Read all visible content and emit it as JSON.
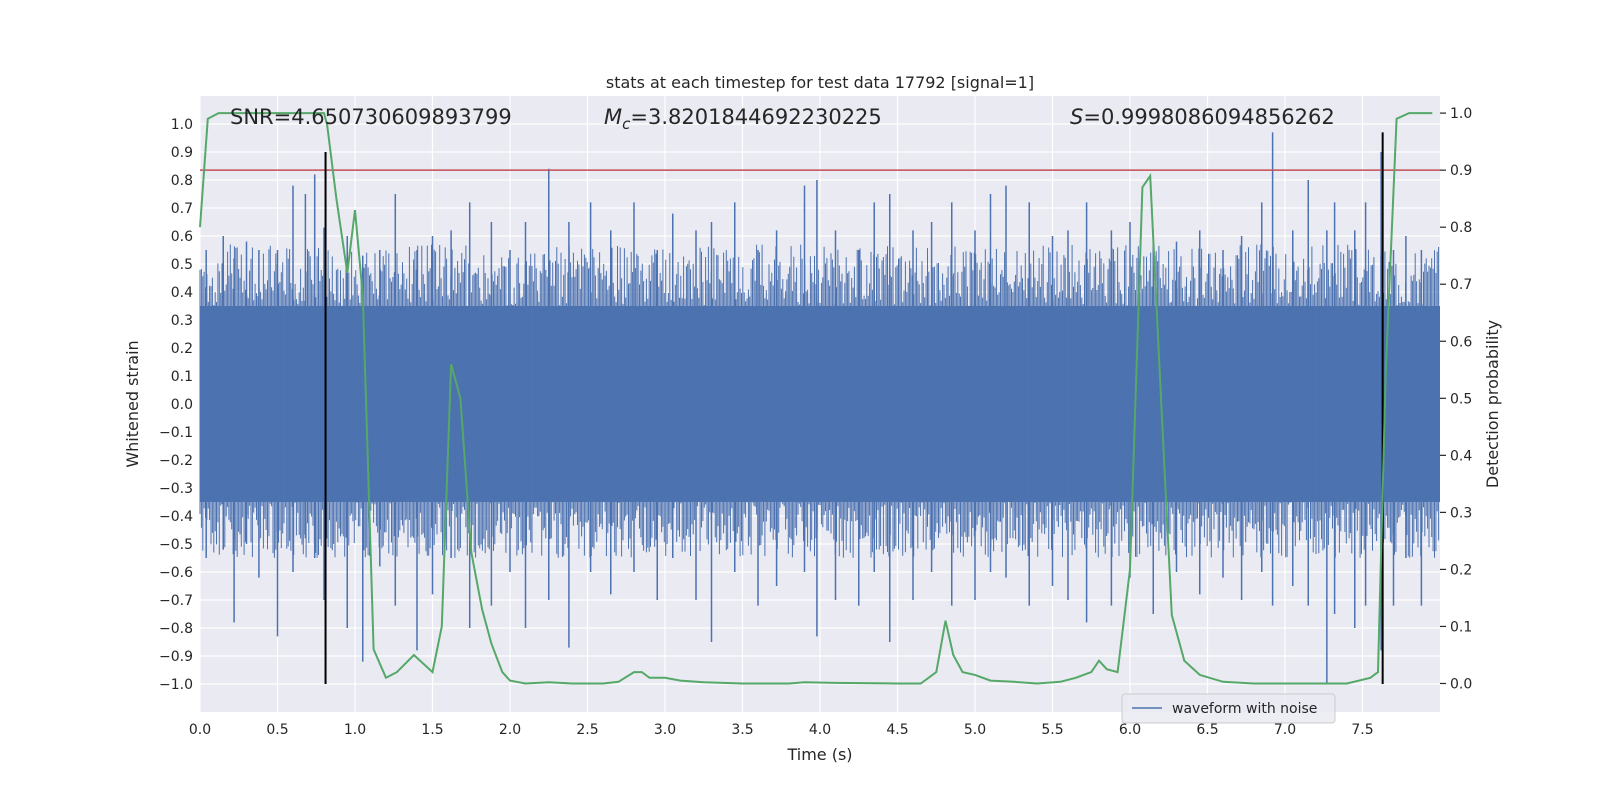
{
  "chart_data": {
    "type": "line",
    "title": "stats at each timestep for test data 17792 [signal=1]",
    "xlabel": "Time (s)",
    "ylabel_left": "Whitened strain",
    "ylabel_right": "Detection probability",
    "xlim": [
      0.0,
      8.0
    ],
    "ylim_left": [
      -1.1,
      1.1
    ],
    "ylim_right": [
      -0.05,
      1.03
    ],
    "x_ticks": [
      0.0,
      0.5,
      1.0,
      1.5,
      2.0,
      2.5,
      3.0,
      3.5,
      4.0,
      4.5,
      5.0,
      5.5,
      6.0,
      6.5,
      7.0,
      7.5
    ],
    "x_tick_labels": [
      "0.0",
      "0.5",
      "1.0",
      "1.5",
      "2.0",
      "2.5",
      "3.0",
      "3.5",
      "4.0",
      "4.5",
      "5.0",
      "5.5",
      "6.0",
      "6.5",
      "7.0",
      "7.5"
    ],
    "y_left_ticks": [
      1.0,
      0.9,
      0.8,
      0.7,
      0.6,
      0.5,
      0.4,
      0.3,
      0.2,
      0.1,
      0.0,
      -0.1,
      -0.2,
      -0.3,
      -0.4,
      -0.5,
      -0.6,
      -0.7,
      -0.8,
      -0.9,
      -1.0
    ],
    "y_left_tick_labels": [
      "1.0",
      "0.9",
      "0.8",
      "0.7",
      "0.6",
      "0.5",
      "0.4",
      "0.3",
      "0.2",
      "0.1",
      "0.0",
      "−0.1",
      "−0.2",
      "−0.3",
      "−0.4",
      "−0.5",
      "−0.6",
      "−0.7",
      "−0.8",
      "−0.9",
      "−1.0"
    ],
    "y_right_ticks": [
      1.0,
      0.9,
      0.8,
      0.7,
      0.6,
      0.5,
      0.4,
      0.3,
      0.2,
      0.1,
      0.0
    ],
    "y_right_tick_labels": [
      "1.0",
      "0.9",
      "0.8",
      "0.7",
      "0.6",
      "0.5",
      "0.4",
      "0.3",
      "0.2",
      "0.1",
      "0.0"
    ],
    "annotations": {
      "snr": "SNR=4.650730609893799",
      "mc_prefix": "M",
      "mc_sub": "c",
      "mc_value": "=3.8201844692230225",
      "s_prefix": "S",
      "s_value": "=0.9998086094856262"
    },
    "threshold_line": {
      "axis": "right",
      "y": 0.9,
      "color": "#c44e52"
    },
    "vertical_lines": [
      {
        "x": 0.81,
        "y_range": [
          -1.0,
          0.9
        ]
      },
      {
        "x": 7.63,
        "y_range": [
          -1.0,
          0.97
        ]
      }
    ],
    "series": [
      {
        "name": "waveform with noise",
        "axis": "left",
        "color": "#4c72b0",
        "band_abs": 0.35,
        "spikes": [
          [
            0.04,
            0.55,
            -0.55
          ],
          [
            0.15,
            0.6,
            -0.52
          ],
          [
            0.22,
            0.52,
            -0.78
          ],
          [
            0.3,
            0.58,
            -0.5
          ],
          [
            0.38,
            0.55,
            -0.62
          ],
          [
            0.5,
            0.55,
            -0.83
          ],
          [
            0.6,
            0.78,
            -0.6
          ],
          [
            0.68,
            0.75,
            -0.48
          ],
          [
            0.74,
            0.82,
            -0.55
          ],
          [
            0.8,
            0.63,
            -0.7
          ],
          [
            0.95,
            0.6,
            -0.8
          ],
          [
            1.05,
            0.53,
            -0.92
          ],
          [
            1.16,
            0.55,
            -0.58
          ],
          [
            1.26,
            0.75,
            -0.72
          ],
          [
            1.4,
            0.55,
            -0.88
          ],
          [
            1.5,
            0.6,
            -0.68
          ],
          [
            1.62,
            0.62,
            -0.55
          ],
          [
            1.74,
            0.72,
            -0.8
          ],
          [
            1.88,
            0.65,
            -0.72
          ],
          [
            2.0,
            0.55,
            -0.6
          ],
          [
            2.1,
            0.65,
            -0.8
          ],
          [
            2.25,
            0.84,
            -0.7
          ],
          [
            2.38,
            0.65,
            -0.87
          ],
          [
            2.52,
            0.72,
            -0.6
          ],
          [
            2.65,
            0.62,
            -0.68
          ],
          [
            2.8,
            0.72,
            -0.6
          ],
          [
            2.95,
            0.55,
            -0.7
          ],
          [
            3.05,
            0.68,
            -0.55
          ],
          [
            3.2,
            0.62,
            -0.7
          ],
          [
            3.3,
            0.65,
            -0.85
          ],
          [
            3.45,
            0.72,
            -0.6
          ],
          [
            3.6,
            0.55,
            -0.72
          ],
          [
            3.72,
            0.62,
            -0.65
          ],
          [
            3.9,
            0.78,
            -0.6
          ],
          [
            3.98,
            0.8,
            -0.83
          ],
          [
            4.1,
            0.62,
            -0.7
          ],
          [
            4.25,
            0.55,
            -0.72
          ],
          [
            4.35,
            0.72,
            -0.6
          ],
          [
            4.45,
            0.75,
            -0.85
          ],
          [
            4.6,
            0.62,
            -0.7
          ],
          [
            4.72,
            0.65,
            -0.6
          ],
          [
            4.85,
            0.72,
            -0.72
          ],
          [
            5.0,
            0.62,
            -0.7
          ],
          [
            5.1,
            0.75,
            -0.6
          ],
          [
            5.2,
            0.78,
            -0.62
          ],
          [
            5.35,
            0.72,
            -0.72
          ],
          [
            5.5,
            0.6,
            -0.65
          ],
          [
            5.6,
            0.62,
            -0.7
          ],
          [
            5.72,
            0.72,
            -0.78
          ],
          [
            5.88,
            0.62,
            -0.72
          ],
          [
            6.0,
            0.65,
            -0.62
          ],
          [
            6.15,
            0.62,
            -0.75
          ],
          [
            6.3,
            0.58,
            -0.6
          ],
          [
            6.45,
            0.62,
            -0.68
          ],
          [
            6.6,
            0.55,
            -0.62
          ],
          [
            6.72,
            0.6,
            -0.7
          ],
          [
            6.85,
            0.72,
            -0.6
          ],
          [
            6.92,
            0.97,
            -0.72
          ],
          [
            7.05,
            0.62,
            -0.65
          ],
          [
            7.15,
            0.8,
            -0.72
          ],
          [
            7.27,
            0.62,
            -1.0
          ],
          [
            7.32,
            0.72,
            -0.75
          ],
          [
            7.45,
            0.62,
            -0.8
          ],
          [
            7.52,
            0.72,
            -0.72
          ],
          [
            7.62,
            0.9,
            -0.88
          ],
          [
            7.7,
            0.55,
            -0.72
          ],
          [
            7.78,
            0.6,
            -0.55
          ],
          [
            7.88,
            0.55,
            -0.72
          ]
        ]
      },
      {
        "name": "detection probability",
        "axis": "right",
        "color": "#55a868",
        "x": [
          0.0,
          0.05,
          0.12,
          0.2,
          0.4,
          0.6,
          0.8,
          0.82,
          0.88,
          0.95,
          1.0,
          1.05,
          1.12,
          1.2,
          1.27,
          1.38,
          1.5,
          1.56,
          1.62,
          1.68,
          1.75,
          1.82,
          1.88,
          1.95,
          2.0,
          2.1,
          2.25,
          2.4,
          2.6,
          2.7,
          2.8,
          2.85,
          2.9,
          2.95,
          3.0,
          3.1,
          3.25,
          3.5,
          3.8,
          3.9,
          4.1,
          4.5,
          4.65,
          4.75,
          4.81,
          4.86,
          4.92,
          5.0,
          5.1,
          5.25,
          5.4,
          5.55,
          5.65,
          5.75,
          5.8,
          5.85,
          5.92,
          6.0,
          6.08,
          6.13,
          6.2,
          6.27,
          6.35,
          6.45,
          6.6,
          6.8,
          7.0,
          7.2,
          7.4,
          7.55,
          7.6,
          7.65,
          7.72,
          7.8,
          7.95
        ],
        "y": [
          0.8,
          0.99,
          1.0,
          1.0,
          1.0,
          1.0,
          1.0,
          0.98,
          0.85,
          0.72,
          0.83,
          0.68,
          0.06,
          0.01,
          0.02,
          0.05,
          0.02,
          0.1,
          0.56,
          0.5,
          0.23,
          0.13,
          0.07,
          0.02,
          0.005,
          0.0,
          0.002,
          0.0,
          0.0,
          0.003,
          0.02,
          0.02,
          0.01,
          0.01,
          0.01,
          0.005,
          0.002,
          0.0,
          0.0,
          0.002,
          0.001,
          0.0,
          0.0,
          0.02,
          0.11,
          0.05,
          0.02,
          0.015,
          0.005,
          0.003,
          0.0,
          0.003,
          0.01,
          0.02,
          0.04,
          0.025,
          0.02,
          0.2,
          0.87,
          0.89,
          0.5,
          0.12,
          0.04,
          0.015,
          0.003,
          0.0,
          0.0,
          0.0,
          0.0,
          0.01,
          0.02,
          0.55,
          0.99,
          1.0,
          1.0
        ]
      }
    ],
    "legend": {
      "placement": "lower-right",
      "entries": [
        "waveform with noise"
      ]
    }
  },
  "colors": {
    "plot_bg": "#eaeaf2",
    "grid": "#ffffff",
    "strain": "#4c72b0",
    "probability": "#55a868",
    "threshold": "#c44e52",
    "marker": "#000000"
  }
}
